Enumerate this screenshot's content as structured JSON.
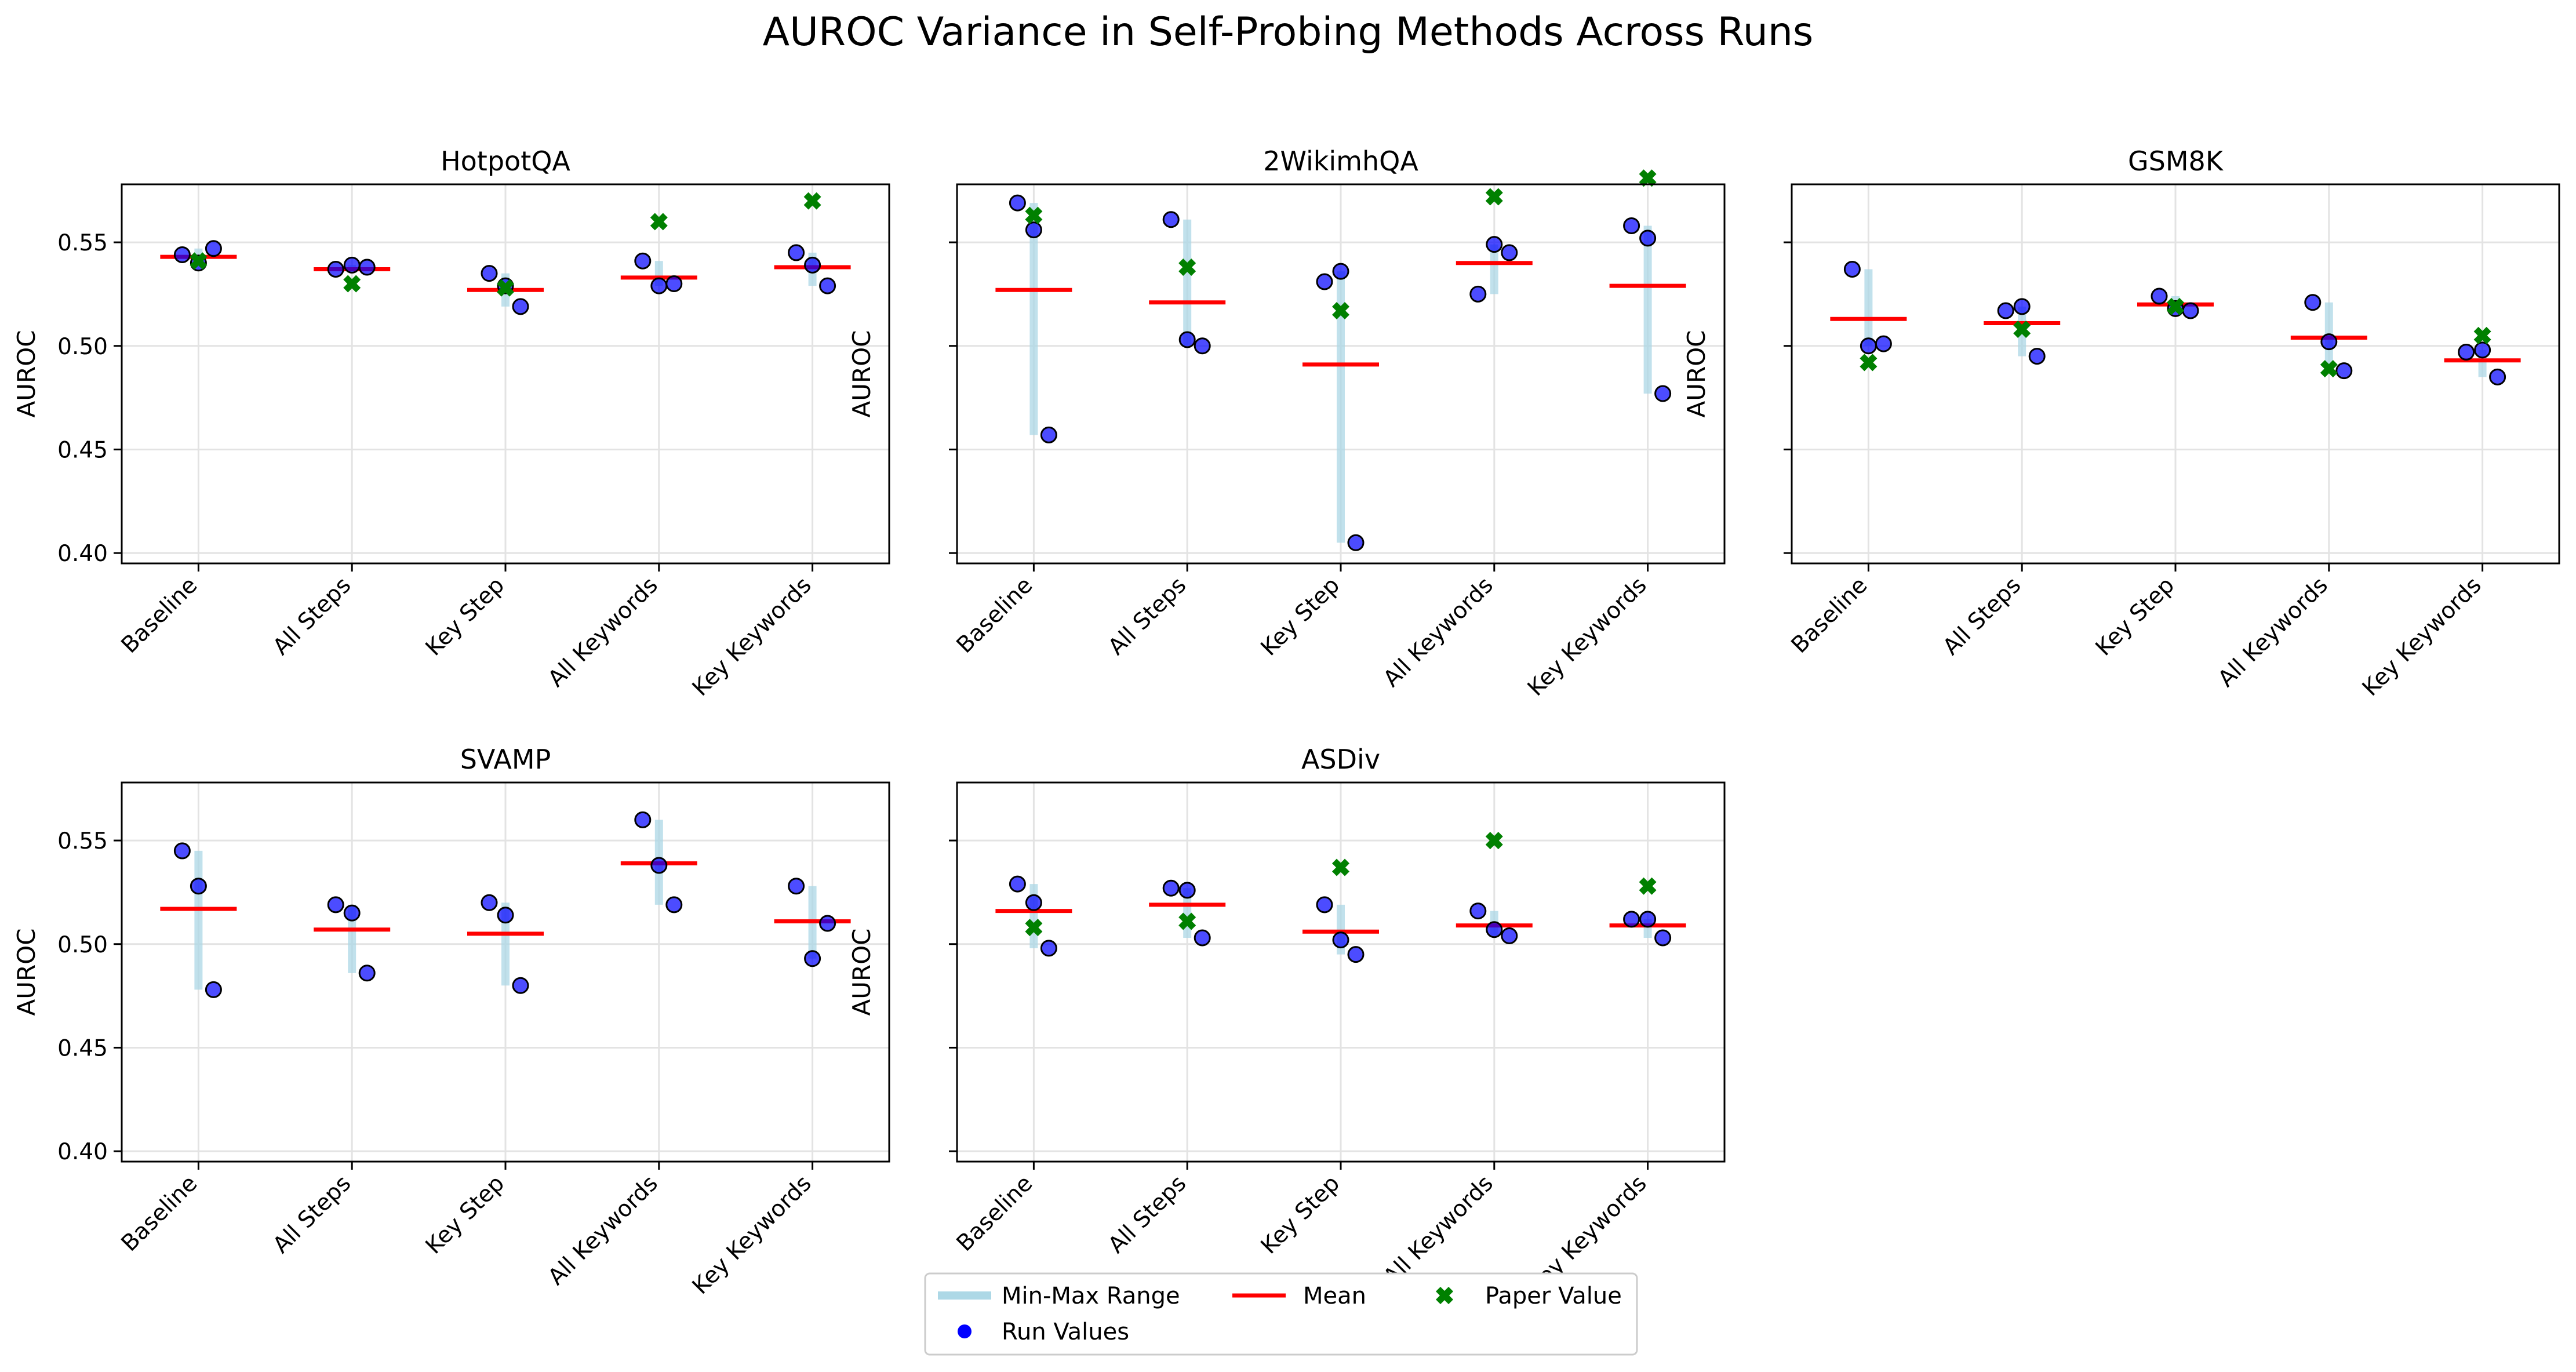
{
  "title": "AUROC Variance in Self-Probing Methods Across Runs",
  "legend": {
    "range": "Min-Max Range",
    "runs": "Run Values",
    "mean": "Mean",
    "paper": "Paper Value"
  },
  "colors": {
    "range": "#add8e6",
    "run": "#0000ff",
    "mean": "#ff0000",
    "paper": "#008000"
  },
  "chart_data": [
    {
      "type": "scatter",
      "title": "HotpotQA",
      "ylabel": "AUROC",
      "ylim": [
        0.395,
        0.578
      ],
      "yticks": [
        "0.40",
        "0.45",
        "0.50",
        "0.55"
      ],
      "categories": [
        "Baseline",
        "All Steps",
        "Key Step",
        "All Keywords",
        "Key Keywords"
      ],
      "runs": [
        [
          0.544,
          0.54,
          0.547
        ],
        [
          0.537,
          0.539,
          0.538
        ],
        [
          0.535,
          0.529,
          0.519
        ],
        [
          0.541,
          0.529,
          0.53
        ],
        [
          0.545,
          0.539,
          0.529
        ]
      ],
      "means": [
        0.543,
        0.537,
        0.527,
        0.533,
        0.538
      ],
      "paper": [
        0.541,
        0.53,
        0.528,
        0.56,
        0.57
      ]
    },
    {
      "type": "scatter",
      "title": "2WikimhQA",
      "ylabel": "AUROC",
      "ylim": [
        0.395,
        0.578
      ],
      "yticks": [
        "",
        "",
        "",
        ""
      ],
      "categories": [
        "Baseline",
        "All Steps",
        "Key Step",
        "All Keywords",
        "Key Keywords"
      ],
      "runs": [
        [
          0.569,
          0.556,
          0.457
        ],
        [
          0.561,
          0.503,
          0.5
        ],
        [
          0.531,
          0.536,
          0.405
        ],
        [
          0.525,
          0.549,
          0.545
        ],
        [
          0.558,
          0.552,
          0.477
        ]
      ],
      "means": [
        0.527,
        0.521,
        0.491,
        0.54,
        0.529
      ],
      "paper": [
        0.563,
        0.538,
        0.517,
        0.572,
        0.581
      ]
    },
    {
      "type": "scatter",
      "title": "GSM8K",
      "ylabel": "AUROC",
      "ylim": [
        0.395,
        0.578
      ],
      "yticks": [
        "",
        "",
        "",
        ""
      ],
      "categories": [
        "Baseline",
        "All Steps",
        "Key Step",
        "All Keywords",
        "Key Keywords"
      ],
      "runs": [
        [
          0.537,
          0.5,
          0.501
        ],
        [
          0.517,
          0.519,
          0.495
        ],
        [
          0.524,
          0.518,
          0.517
        ],
        [
          0.521,
          0.502,
          0.488
        ],
        [
          0.497,
          0.498,
          0.485
        ]
      ],
      "means": [
        0.513,
        0.511,
        0.52,
        0.504,
        0.493
      ],
      "paper": [
        0.492,
        0.508,
        0.519,
        0.489,
        0.505
      ]
    },
    {
      "type": "scatter",
      "title": "SVAMP",
      "ylabel": "AUROC",
      "ylim": [
        0.395,
        0.578
      ],
      "yticks": [
        "0.40",
        "0.45",
        "0.50",
        "0.55"
      ],
      "categories": [
        "Baseline",
        "All Steps",
        "Key Step",
        "All Keywords",
        "Key Keywords"
      ],
      "runs": [
        [
          0.545,
          0.528,
          0.478
        ],
        [
          0.519,
          0.515,
          0.486
        ],
        [
          0.52,
          0.514,
          0.48
        ],
        [
          0.56,
          0.538,
          0.519
        ],
        [
          0.528,
          0.493,
          0.51
        ]
      ],
      "means": [
        0.517,
        0.507,
        0.505,
        0.539,
        0.511
      ],
      "paper": []
    },
    {
      "type": "scatter",
      "title": "ASDiv",
      "ylabel": "AUROC",
      "ylim": [
        0.395,
        0.578
      ],
      "yticks": [
        "",
        "",
        "",
        ""
      ],
      "categories": [
        "Baseline",
        "All Steps",
        "Key Step",
        "All Keywords",
        "Key Keywords"
      ],
      "runs": [
        [
          0.529,
          0.52,
          0.498
        ],
        [
          0.527,
          0.526,
          0.503
        ],
        [
          0.519,
          0.502,
          0.495
        ],
        [
          0.516,
          0.507,
          0.504
        ],
        [
          0.512,
          0.512,
          0.503
        ]
      ],
      "means": [
        0.516,
        0.519,
        0.506,
        0.509,
        0.509
      ],
      "paper": [
        0.508,
        0.511,
        0.537,
        0.55,
        0.528
      ]
    }
  ]
}
